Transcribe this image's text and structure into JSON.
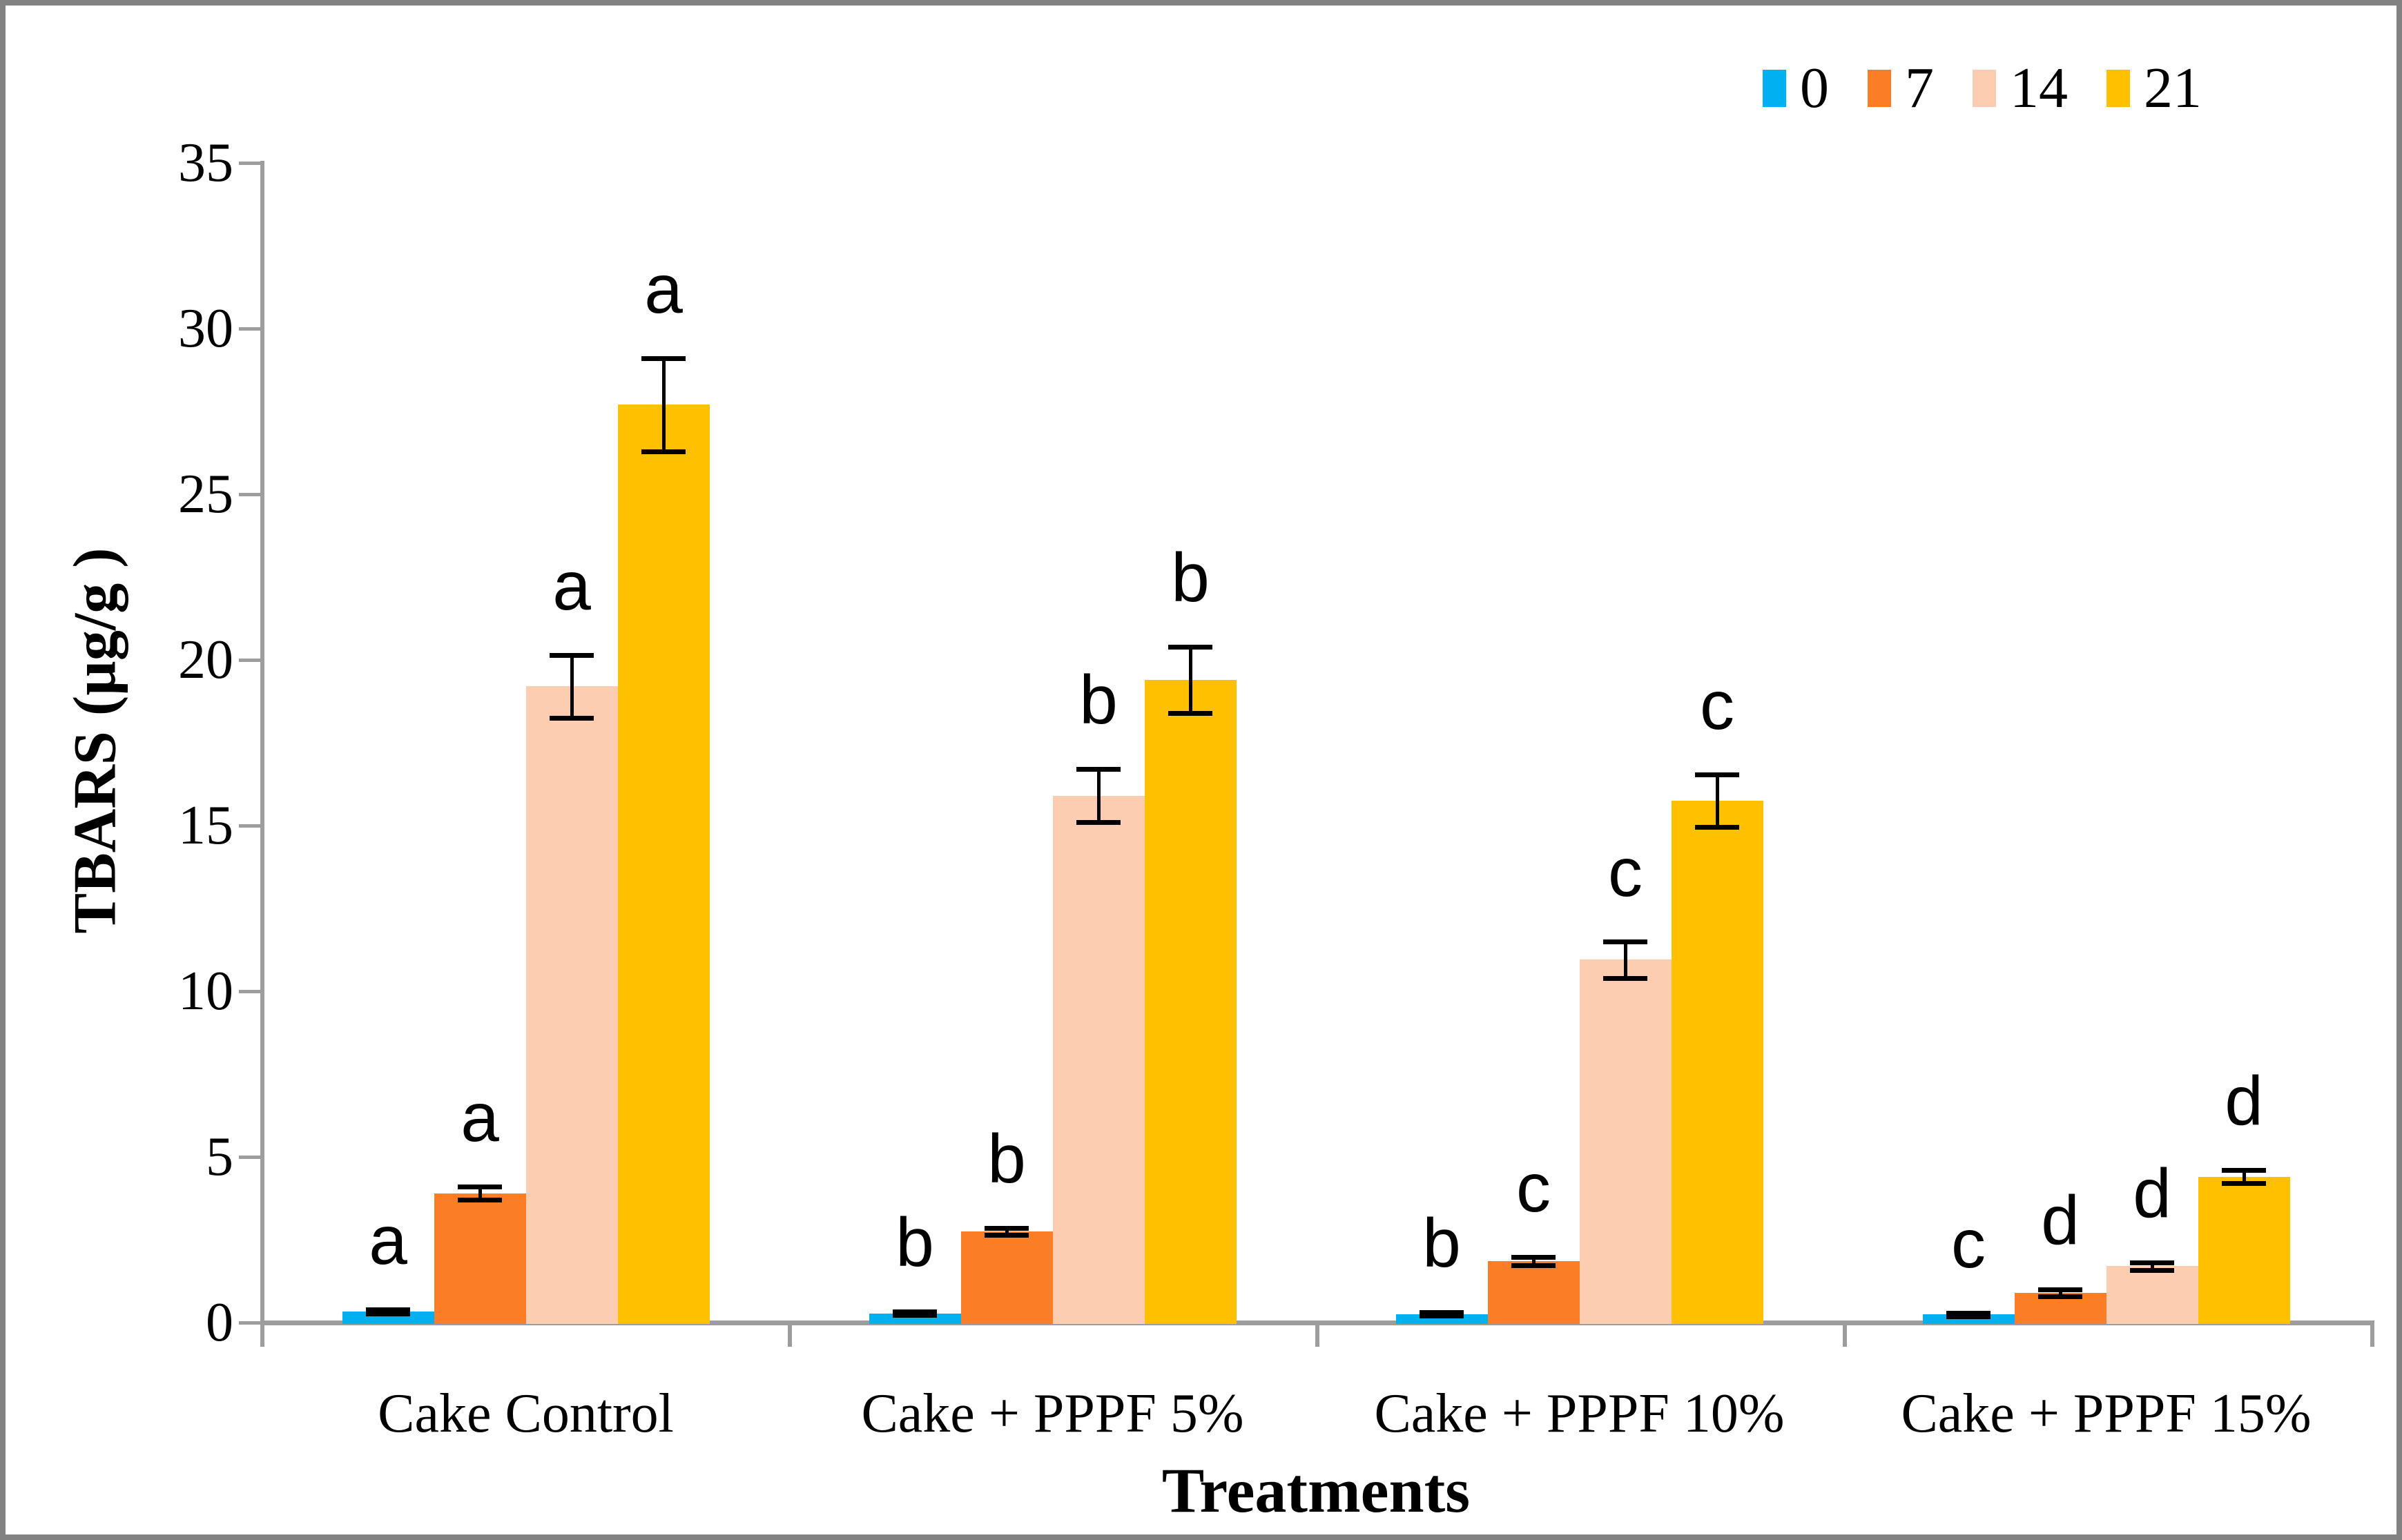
{
  "figure": {
    "y_axis_title": "TBARS (µg/g )",
    "x_axis_title": "Treatments"
  },
  "legend": {
    "position": "top-right",
    "items": [
      {
        "label": "0",
        "color": "#00B0F0"
      },
      {
        "label": "7",
        "color": "#FB7D26"
      },
      {
        "label": "14",
        "color": "#FCCDB0"
      },
      {
        "label": "21",
        "color": "#FFC000"
      }
    ]
  },
  "chart_data": {
    "type": "bar",
    "title": "",
    "xlabel": "Treatments",
    "ylabel": "TBARS (µg/g )",
    "ylim": [
      0,
      35
    ],
    "ytick_step": 5,
    "yticks": [
      0,
      5,
      10,
      15,
      20,
      25,
      30,
      35
    ],
    "grid": false,
    "legend_position": "top-right",
    "axis_color": "#9d9d9d",
    "error_bar_color": "#000000",
    "categories": [
      "Cake Control",
      "Cake + PPPF 5%",
      "Cake + PPPF 10%",
      "Cake + PPPF 15%"
    ],
    "series": [
      {
        "name": "0",
        "color": "#00B0F0",
        "values": [
          0.33,
          0.28,
          0.26,
          0.24
        ],
        "errors": [
          0.06,
          0.05,
          0.05,
          0.05
        ],
        "letters": [
          "a",
          "b",
          "b",
          "c"
        ]
      },
      {
        "name": "7",
        "color": "#FB7D26",
        "values": [
          3.9,
          2.75,
          1.85,
          0.9
        ],
        "errors": [
          0.2,
          0.1,
          0.13,
          0.1
        ],
        "letters": [
          "a",
          "b",
          "c",
          "d"
        ]
      },
      {
        "name": "14",
        "color": "#FCCDB0",
        "values": [
          19.2,
          15.9,
          10.95,
          1.7
        ],
        "errors": [
          0.95,
          0.8,
          0.55,
          0.12
        ],
        "letters": [
          "a",
          "b",
          "c",
          "d"
        ]
      },
      {
        "name": "21",
        "color": "#FFC000",
        "values": [
          27.7,
          19.4,
          15.75,
          4.4
        ],
        "errors": [
          1.4,
          1.0,
          0.8,
          0.2
        ],
        "letters": [
          "a",
          "b",
          "c",
          "d"
        ]
      }
    ]
  }
}
